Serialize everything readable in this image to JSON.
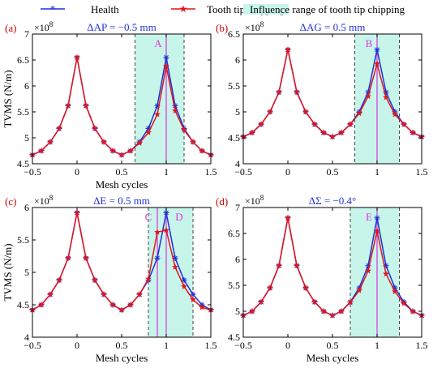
{
  "legend": {
    "items": [
      {
        "label": "Health",
        "color": "#1f2fd8",
        "marker": "asterisk"
      },
      {
        "label": "Tooth tip chipping",
        "color": "#e0161a",
        "marker": "star"
      },
      {
        "label": "Influence range of tooth tip chipping",
        "color": "#c8f5ea",
        "marker": "patch"
      }
    ]
  },
  "colors": {
    "health": "#1f2fd8",
    "fault": "#e0161a",
    "band": "#c8f5ea",
    "vline": "#dd33dd",
    "panel_label": "#cc0000",
    "subtitle": "#2233dd",
    "dash": "#444444"
  },
  "chart_data": [
    {
      "type": "line",
      "panel_label": "(a)",
      "subtitle": "ΔAP = −0.5 mm",
      "xlabel": "Mesh cycles",
      "ylabel": "TVMS (N/m)",
      "exponent": "×10^8",
      "xlim": [
        -0.5,
        1.5
      ],
      "ylim": [
        4.5,
        7
      ],
      "xticks": [
        -0.5,
        0,
        0.5,
        1,
        1.5
      ],
      "yticks": [
        4.5,
        5,
        5.5,
        6,
        6.5,
        7
      ],
      "ytick_labels": [
        "4.5",
        "5",
        "5.5",
        "6",
        "6.5",
        "7"
      ],
      "grid": false,
      "base": 4.65,
      "peak": 6.55,
      "fault_peak": 6.38,
      "band": [
        0.65,
        1.2
      ],
      "marker_lines": [
        {
          "x": 1.0,
          "label": "A"
        }
      ],
      "series": [
        {
          "name": "Health",
          "x": [
            -0.5,
            -0.4,
            -0.3,
            -0.2,
            -0.1,
            0.0,
            0.1,
            0.2,
            0.3,
            0.4,
            0.5,
            0.6,
            0.7,
            0.8,
            0.9,
            1.0,
            1.1,
            1.2,
            1.3,
            1.4,
            1.5
          ],
          "y": [
            4.67,
            4.75,
            4.92,
            5.18,
            5.62,
            6.55,
            5.62,
            5.18,
            4.92,
            4.75,
            4.67,
            4.75,
            4.92,
            5.18,
            5.62,
            6.55,
            5.62,
            5.18,
            4.92,
            4.75,
            4.67
          ]
        },
        {
          "name": "Tooth tip chipping",
          "x": [
            -0.5,
            -0.4,
            -0.3,
            -0.2,
            -0.1,
            0.0,
            0.1,
            0.2,
            0.3,
            0.4,
            0.5,
            0.6,
            0.7,
            0.8,
            0.9,
            1.0,
            1.1,
            1.2,
            1.3,
            1.4,
            1.5
          ],
          "y": [
            4.67,
            4.75,
            4.92,
            5.18,
            5.62,
            6.55,
            5.62,
            5.18,
            4.92,
            4.75,
            4.67,
            4.75,
            4.9,
            5.1,
            5.45,
            6.38,
            5.52,
            5.15,
            4.92,
            4.75,
            4.67
          ]
        }
      ]
    },
    {
      "type": "line",
      "panel_label": "(b)",
      "subtitle": "ΔAG = 0.5 mm",
      "xlabel": "",
      "ylabel": "",
      "exponent": "×10^8",
      "xlim": [
        -0.5,
        1.5
      ],
      "ylim": [
        4,
        6.5
      ],
      "xticks": [
        -0.5,
        0,
        0.5,
        1,
        1.5
      ],
      "yticks": [
        4,
        4.5,
        5,
        5.5,
        6,
        6.5
      ],
      "ytick_labels": [
        "4",
        "4.5",
        "5",
        "5.5",
        "6",
        "6.5"
      ],
      "grid": false,
      "base": 4.5,
      "peak": 6.2,
      "fault_peak": 5.93,
      "band": [
        0.75,
        1.25
      ],
      "marker_lines": [
        {
          "x": 1.0,
          "label": "B"
        }
      ],
      "series": [
        {
          "name": "Health",
          "x": [
            -0.5,
            -0.4,
            -0.3,
            -0.2,
            -0.1,
            0.0,
            0.1,
            0.2,
            0.3,
            0.4,
            0.5,
            0.6,
            0.7,
            0.8,
            0.9,
            1.0,
            1.1,
            1.2,
            1.3,
            1.4,
            1.5
          ],
          "y": [
            4.52,
            4.6,
            4.76,
            5.0,
            5.38,
            6.2,
            5.38,
            5.0,
            4.76,
            4.6,
            4.52,
            4.6,
            4.76,
            5.0,
            5.38,
            6.2,
            5.38,
            5.0,
            4.76,
            4.6,
            4.52
          ]
        },
        {
          "name": "Tooth tip chipping",
          "x": [
            -0.5,
            -0.4,
            -0.3,
            -0.2,
            -0.1,
            0.0,
            0.1,
            0.2,
            0.3,
            0.4,
            0.5,
            0.6,
            0.7,
            0.8,
            0.9,
            1.0,
            1.1,
            1.2,
            1.3,
            1.4,
            1.5
          ],
          "y": [
            4.52,
            4.6,
            4.76,
            5.0,
            5.38,
            6.2,
            5.38,
            5.0,
            4.76,
            4.6,
            4.52,
            4.6,
            4.76,
            4.97,
            5.3,
            5.93,
            5.28,
            4.95,
            4.76,
            4.6,
            4.52
          ]
        }
      ]
    },
    {
      "type": "line",
      "panel_label": "(c)",
      "subtitle": "ΔE = 0.5 mm",
      "xlabel": "Mesh cycles",
      "ylabel": "TVMS (N/m)",
      "exponent": "×10^8",
      "xlim": [
        -0.5,
        1.5
      ],
      "ylim": [
        4,
        6
      ],
      "xticks": [
        -0.5,
        0,
        0.5,
        1,
        1.5
      ],
      "yticks": [
        4,
        4.5,
        5,
        5.5,
        6
      ],
      "ytick_labels": [
        "4",
        "4.5",
        "5",
        "5.5",
        "6"
      ],
      "grid": false,
      "base": 4.4,
      "peak": 5.92,
      "fault_peak": 5.65,
      "band": [
        0.8,
        1.3
      ],
      "marker_lines": [
        {
          "x": 0.9,
          "label": "C"
        },
        {
          "x": 1.0,
          "label": "D"
        }
      ],
      "series": [
        {
          "name": "Health",
          "x": [
            -0.5,
            -0.4,
            -0.3,
            -0.2,
            -0.1,
            0.0,
            0.1,
            0.2,
            0.3,
            0.4,
            0.5,
            0.6,
            0.7,
            0.8,
            0.9,
            1.0,
            1.1,
            1.2,
            1.3,
            1.4,
            1.5
          ],
          "y": [
            4.42,
            4.5,
            4.66,
            4.88,
            5.22,
            5.92,
            5.22,
            4.88,
            4.66,
            4.5,
            4.42,
            4.5,
            4.66,
            4.88,
            5.22,
            5.92,
            5.22,
            4.88,
            4.66,
            4.5,
            4.42
          ]
        },
        {
          "name": "Tooth tip chipping",
          "x": [
            -0.5,
            -0.4,
            -0.3,
            -0.2,
            -0.1,
            0.0,
            0.1,
            0.2,
            0.3,
            0.4,
            0.5,
            0.6,
            0.7,
            0.8,
            0.9,
            1.0,
            1.1,
            1.2,
            1.3,
            1.4,
            1.5
          ],
          "y": [
            4.42,
            4.5,
            4.66,
            4.88,
            5.22,
            5.92,
            5.22,
            4.88,
            4.66,
            4.5,
            4.42,
            4.5,
            4.66,
            4.9,
            5.62,
            5.65,
            5.08,
            4.78,
            4.58,
            4.46,
            4.42
          ]
        }
      ]
    },
    {
      "type": "line",
      "panel_label": "(d)",
      "subtitle": "ΔΣ = −0.4°",
      "xlabel": "Mesh cycles",
      "ylabel": "",
      "exponent": "×10^8",
      "xlim": [
        -0.5,
        1.5
      ],
      "ylim": [
        4.5,
        7
      ],
      "xticks": [
        -0.5,
        0,
        0.5,
        1,
        1.5
      ],
      "yticks": [
        4.5,
        5,
        5.5,
        6,
        6.5,
        7
      ],
      "ytick_labels": [
        "4.5",
        "5",
        "5.5",
        "6",
        "6.5",
        "7"
      ],
      "grid": false,
      "base": 4.9,
      "peak": 6.8,
      "fault_peak": 6.55,
      "band": [
        0.7,
        1.25
      ],
      "marker_lines": [
        {
          "x": 1.0,
          "label": "E"
        }
      ],
      "series": [
        {
          "name": "Health",
          "x": [
            -0.5,
            -0.4,
            -0.3,
            -0.2,
            -0.1,
            0.0,
            0.1,
            0.2,
            0.3,
            0.4,
            0.5,
            0.6,
            0.7,
            0.8,
            0.9,
            1.0,
            1.1,
            1.2,
            1.3,
            1.4,
            1.5
          ],
          "y": [
            4.92,
            5.0,
            5.18,
            5.45,
            5.88,
            6.8,
            5.88,
            5.45,
            5.18,
            5.0,
            4.92,
            5.0,
            5.18,
            5.45,
            5.88,
            6.8,
            5.88,
            5.45,
            5.18,
            5.0,
            4.92
          ]
        },
        {
          "name": "Tooth tip chipping",
          "x": [
            -0.5,
            -0.4,
            -0.3,
            -0.2,
            -0.1,
            0.0,
            0.1,
            0.2,
            0.3,
            0.4,
            0.5,
            0.6,
            0.7,
            0.8,
            0.9,
            1.0,
            1.1,
            1.2,
            1.3,
            1.4,
            1.5
          ],
          "y": [
            4.92,
            5.0,
            5.18,
            5.45,
            5.88,
            6.8,
            5.88,
            5.45,
            5.18,
            5.0,
            4.92,
            5.0,
            5.17,
            5.4,
            5.78,
            6.55,
            5.72,
            5.38,
            5.15,
            5.0,
            4.92
          ]
        }
      ]
    }
  ]
}
